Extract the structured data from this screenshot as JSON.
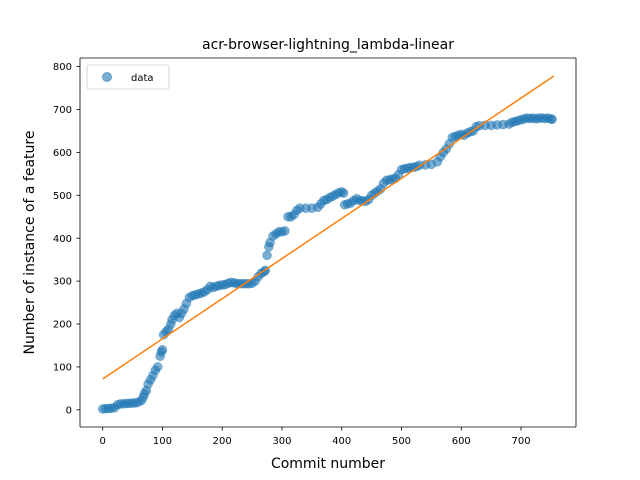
{
  "chart_data": {
    "type": "scatter",
    "title": "acr-browser-lightning_lambda-linear",
    "xlabel": "Commit number",
    "ylabel": "Number of instance of a feature",
    "xlim": [
      -38,
      792
    ],
    "ylim": [
      -40,
      820
    ],
    "xticks": [
      0,
      100,
      200,
      300,
      400,
      500,
      600,
      700
    ],
    "yticks": [
      0,
      100,
      200,
      300,
      400,
      500,
      600,
      700,
      800
    ],
    "grid": false,
    "legend_placement": "top-left",
    "series": [
      {
        "name": "data",
        "kind": "scatter",
        "color": "#1f77b4",
        "points": [
          [
            0,
            2
          ],
          [
            5,
            3
          ],
          [
            10,
            3
          ],
          [
            15,
            4
          ],
          [
            20,
            5
          ],
          [
            25,
            12
          ],
          [
            30,
            14
          ],
          [
            35,
            14
          ],
          [
            40,
            15
          ],
          [
            45,
            15
          ],
          [
            50,
            16
          ],
          [
            55,
            16
          ],
          [
            60,
            18
          ],
          [
            65,
            22
          ],
          [
            68,
            30
          ],
          [
            70,
            38
          ],
          [
            73,
            45
          ],
          [
            76,
            60
          ],
          [
            80,
            70
          ],
          [
            84,
            80
          ],
          [
            88,
            92
          ],
          [
            92,
            100
          ],
          [
            96,
            125
          ],
          [
            98,
            135
          ],
          [
            100,
            140
          ],
          [
            102,
            175
          ],
          [
            106,
            182
          ],
          [
            110,
            188
          ],
          [
            114,
            200
          ],
          [
            116,
            210
          ],
          [
            120,
            220
          ],
          [
            124,
            225
          ],
          [
            128,
            215
          ],
          [
            132,
            225
          ],
          [
            136,
            235
          ],
          [
            140,
            248
          ],
          [
            145,
            262
          ],
          [
            150,
            266
          ],
          [
            155,
            268
          ],
          [
            160,
            270
          ],
          [
            165,
            272
          ],
          [
            170,
            275
          ],
          [
            175,
            280
          ],
          [
            180,
            288
          ],
          [
            185,
            285
          ],
          [
            190,
            288
          ],
          [
            195,
            290
          ],
          [
            200,
            291
          ],
          [
            205,
            292
          ],
          [
            210,
            295
          ],
          [
            215,
            297
          ],
          [
            220,
            296
          ],
          [
            225,
            294
          ],
          [
            230,
            294
          ],
          [
            235,
            294
          ],
          [
            240,
            294
          ],
          [
            245,
            294
          ],
          [
            250,
            295
          ],
          [
            255,
            300
          ],
          [
            260,
            310
          ],
          [
            265,
            318
          ],
          [
            270,
            322
          ],
          [
            272,
            325
          ],
          [
            275,
            360
          ],
          [
            278,
            380
          ],
          [
            280,
            390
          ],
          [
            285,
            405
          ],
          [
            290,
            410
          ],
          [
            295,
            415
          ],
          [
            300,
            415
          ],
          [
            305,
            417
          ],
          [
            310,
            450
          ],
          [
            315,
            450
          ],
          [
            320,
            455
          ],
          [
            325,
            465
          ],
          [
            330,
            470
          ],
          [
            340,
            470
          ],
          [
            350,
            470
          ],
          [
            360,
            472
          ],
          [
            365,
            480
          ],
          [
            370,
            488
          ],
          [
            375,
            490
          ],
          [
            380,
            495
          ],
          [
            385,
            498
          ],
          [
            390,
            502
          ],
          [
            395,
            506
          ],
          [
            400,
            508
          ],
          [
            403,
            505
          ],
          [
            405,
            478
          ],
          [
            410,
            480
          ],
          [
            415,
            482
          ],
          [
            420,
            488
          ],
          [
            425,
            492
          ],
          [
            430,
            488
          ],
          [
            435,
            487
          ],
          [
            440,
            486
          ],
          [
            445,
            490
          ],
          [
            450,
            500
          ],
          [
            455,
            505
          ],
          [
            460,
            510
          ],
          [
            465,
            515
          ],
          [
            470,
            528
          ],
          [
            475,
            535
          ],
          [
            480,
            536
          ],
          [
            485,
            538
          ],
          [
            490,
            540
          ],
          [
            495,
            548
          ],
          [
            500,
            560
          ],
          [
            505,
            562
          ],
          [
            510,
            563
          ],
          [
            515,
            565
          ],
          [
            520,
            565
          ],
          [
            525,
            567
          ],
          [
            530,
            570
          ],
          [
            540,
            571
          ],
          [
            550,
            572
          ],
          [
            560,
            578
          ],
          [
            565,
            590
          ],
          [
            570,
            600
          ],
          [
            575,
            608
          ],
          [
            580,
            620
          ],
          [
            585,
            635
          ],
          [
            590,
            637
          ],
          [
            595,
            640
          ],
          [
            600,
            642
          ],
          [
            605,
            640
          ],
          [
            610,
            645
          ],
          [
            615,
            648
          ],
          [
            620,
            650
          ],
          [
            625,
            660
          ],
          [
            630,
            662
          ],
          [
            640,
            663
          ],
          [
            650,
            663
          ],
          [
            660,
            664
          ],
          [
            670,
            665
          ],
          [
            680,
            666
          ],
          [
            685,
            670
          ],
          [
            690,
            672
          ],
          [
            695,
            674
          ],
          [
            700,
            676
          ],
          [
            705,
            678
          ],
          [
            710,
            680
          ],
          [
            715,
            679
          ],
          [
            720,
            680
          ],
          [
            725,
            678
          ],
          [
            730,
            680
          ],
          [
            735,
            680
          ],
          [
            740,
            679
          ],
          [
            745,
            680
          ],
          [
            750,
            678
          ],
          [
            752,
            677
          ]
        ]
      },
      {
        "name": "",
        "kind": "line",
        "color": "#ff7f0e",
        "points": [
          [
            0,
            72
          ],
          [
            755,
            778
          ]
        ]
      }
    ]
  }
}
